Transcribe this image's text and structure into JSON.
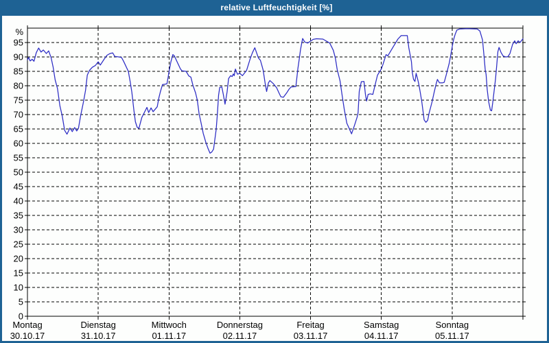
{
  "window": {
    "title": "relative Luftfeuchtigkeit [%]"
  },
  "colors": {
    "titlebar_bg": "#1e6294",
    "title_text": "#ffffff",
    "border": "#1e6294",
    "content_bg": "#fdfefd",
    "plot_bg": "#fdfefd",
    "line": "#2b2bc4",
    "grid": "#000000",
    "axis": "#000000",
    "text": "#000000"
  },
  "chart_data": {
    "type": "line",
    "title": "relative Luftfeuchtigkeit [%]",
    "xlabel": "",
    "ylabel": "%",
    "ylim": [
      0,
      100
    ],
    "y_ticks": [
      0,
      5,
      10,
      15,
      20,
      25,
      30,
      35,
      40,
      45,
      50,
      55,
      60,
      65,
      70,
      75,
      80,
      85,
      90,
      95
    ],
    "grid": true,
    "legend": "none",
    "x_unit": "hours",
    "x_range_hours": [
      0,
      168
    ],
    "x_days": [
      {
        "day": "Montag",
        "date": "30.10.17"
      },
      {
        "day": "Dienstag",
        "date": "31.10.17"
      },
      {
        "day": "Mittwoch",
        "date": "01.11.17"
      },
      {
        "day": "Donnerstag",
        "date": "02.11.17"
      },
      {
        "day": "Freitag",
        "date": "03.11.17"
      },
      {
        "day": "Samstag",
        "date": "04.11.17"
      },
      {
        "day": "Sonntag",
        "date": "05.11.17"
      }
    ],
    "series": [
      {
        "name": "relative Luftfeuchtigkeit",
        "unit": "%",
        "points": [
          [
            0,
            89
          ],
          [
            0.4,
            89.8
          ],
          [
            0.9,
            88.6
          ],
          [
            1.6,
            89.2
          ],
          [
            2.2,
            88.5
          ],
          [
            3,
            91.5
          ],
          [
            3.8,
            93.1
          ],
          [
            4.6,
            91.7
          ],
          [
            5.4,
            92.4
          ],
          [
            6.4,
            91.2
          ],
          [
            7.2,
            92.1
          ],
          [
            8,
            89.8
          ],
          [
            8.7,
            86.5
          ],
          [
            9.4,
            82
          ],
          [
            10.2,
            79
          ],
          [
            11,
            73
          ],
          [
            11.8,
            69.5
          ],
          [
            12.6,
            64.5
          ],
          [
            13.4,
            63.2
          ],
          [
            14.4,
            65.3
          ],
          [
            15.2,
            64.1
          ],
          [
            16,
            65.5
          ],
          [
            16.7,
            64.3
          ],
          [
            17.3,
            65.2
          ],
          [
            18,
            69.5
          ],
          [
            19,
            74.5
          ],
          [
            19.7,
            78.5
          ],
          [
            20.3,
            83.7
          ],
          [
            21,
            85.3
          ],
          [
            22,
            86.4
          ],
          [
            23,
            87
          ],
          [
            24,
            88.3
          ],
          [
            24.7,
            87.2
          ],
          [
            26,
            89.2
          ],
          [
            27,
            90.6
          ],
          [
            28,
            91.2
          ],
          [
            28.9,
            91.4
          ],
          [
            29.6,
            90.2
          ],
          [
            31,
            90
          ],
          [
            31.9,
            89.8
          ],
          [
            32.6,
            88.5
          ],
          [
            34.2,
            85
          ],
          [
            34.9,
            81
          ],
          [
            35.4,
            77.8
          ],
          [
            36.1,
            71.5
          ],
          [
            36.6,
            67.5
          ],
          [
            37.2,
            65.6
          ],
          [
            37.8,
            65.2
          ],
          [
            38.8,
            69
          ],
          [
            40.5,
            72.5
          ],
          [
            41.1,
            70.7
          ],
          [
            41.9,
            72.3
          ],
          [
            42.6,
            71
          ],
          [
            44,
            72.7
          ],
          [
            44.6,
            76
          ],
          [
            45.1,
            78
          ],
          [
            45.8,
            80.4
          ],
          [
            46.5,
            80.5
          ],
          [
            47.3,
            80.7
          ],
          [
            48,
            84.8
          ],
          [
            48.6,
            88.2
          ],
          [
            49.3,
            90.8
          ],
          [
            49.8,
            90.4
          ],
          [
            50.8,
            88.2
          ],
          [
            51.9,
            85.8
          ],
          [
            52.4,
            85.2
          ],
          [
            53.8,
            85
          ],
          [
            54.7,
            83.4
          ],
          [
            55.4,
            83
          ],
          [
            56.1,
            80.2
          ],
          [
            57,
            77.5
          ],
          [
            57.6,
            75
          ],
          [
            58.2,
            70.3
          ],
          [
            58.9,
            67
          ],
          [
            59.6,
            63.5
          ],
          [
            60.5,
            60.3
          ],
          [
            61.2,
            58.3
          ],
          [
            61.9,
            56.6
          ],
          [
            62.5,
            57
          ],
          [
            63.1,
            58
          ],
          [
            64,
            64.8
          ],
          [
            64.4,
            70.3
          ],
          [
            64.8,
            76.7
          ],
          [
            65.2,
            79.4
          ],
          [
            65.9,
            79.6
          ],
          [
            66.4,
            77
          ],
          [
            67,
            73.6
          ],
          [
            67.7,
            77.8
          ],
          [
            68.2,
            82.5
          ],
          [
            68.9,
            83.5
          ],
          [
            69.4,
            83.2
          ],
          [
            69.8,
            84.1
          ],
          [
            70.1,
            83.5
          ],
          [
            70.5,
            85.8
          ],
          [
            71.2,
            84
          ],
          [
            72,
            84.3
          ],
          [
            72.9,
            83.5
          ],
          [
            74.3,
            85.3
          ],
          [
            75.5,
            89.3
          ],
          [
            76.3,
            91.5
          ],
          [
            77.1,
            93.2
          ],
          [
            78.3,
            89.7
          ],
          [
            79,
            88.8
          ],
          [
            79.9,
            85.5
          ],
          [
            80.6,
            80.8
          ],
          [
            81.1,
            78
          ],
          [
            81.7,
            81
          ],
          [
            82.2,
            81.8
          ],
          [
            83.4,
            80.7
          ],
          [
            84.5,
            79.3
          ],
          [
            85.2,
            77.7
          ],
          [
            85.9,
            76.2
          ],
          [
            86.8,
            76
          ],
          [
            88,
            77.7
          ],
          [
            88.7,
            78.8
          ],
          [
            89.4,
            79.6
          ],
          [
            91,
            79.7
          ],
          [
            91.7,
            86
          ],
          [
            92.2,
            89.5
          ],
          [
            92.6,
            92.7
          ],
          [
            93.3,
            96.4
          ],
          [
            94,
            95.2
          ],
          [
            95,
            94.8
          ],
          [
            96,
            95.5
          ],
          [
            96.9,
            96.1
          ],
          [
            98,
            96.3
          ],
          [
            100.2,
            96.2
          ],
          [
            101.5,
            95.4
          ],
          [
            102.5,
            94.8
          ],
          [
            103.7,
            92.3
          ],
          [
            104.4,
            89.6
          ],
          [
            105,
            85.7
          ],
          [
            106,
            81.7
          ],
          [
            106.7,
            76.6
          ],
          [
            107.4,
            71.9
          ],
          [
            108.3,
            67
          ],
          [
            109,
            65.4
          ],
          [
            109.9,
            63.3
          ],
          [
            110.8,
            66
          ],
          [
            111.8,
            69.2
          ],
          [
            112.1,
            70.7
          ],
          [
            112.5,
            78
          ],
          [
            113.2,
            81.4
          ],
          [
            114.1,
            81.5
          ],
          [
            114.6,
            77
          ],
          [
            115,
            74.7
          ],
          [
            115.5,
            77
          ],
          [
            116.2,
            77.2
          ],
          [
            117.1,
            77
          ],
          [
            117.8,
            80
          ],
          [
            118.7,
            83.7
          ],
          [
            120,
            85.8
          ],
          [
            120.5,
            87.3
          ],
          [
            121.6,
            90.8
          ],
          [
            122.2,
            90.4
          ],
          [
            123.9,
            93.3
          ],
          [
            125.6,
            96.2
          ],
          [
            126.7,
            97.4
          ],
          [
            128.8,
            97.4
          ],
          [
            129.3,
            93.2
          ],
          [
            130.2,
            88.4
          ],
          [
            130.5,
            84.6
          ],
          [
            130.9,
            82.2
          ],
          [
            131.4,
            81.5
          ],
          [
            131.8,
            84.3
          ],
          [
            132.5,
            81.5
          ],
          [
            132.8,
            80
          ],
          [
            133.2,
            77.7
          ],
          [
            133.7,
            74.5
          ],
          [
            134.1,
            71.4
          ],
          [
            134.5,
            68.2
          ],
          [
            135.1,
            67.3
          ],
          [
            135.7,
            68
          ],
          [
            136.2,
            70.5
          ],
          [
            137.2,
            74.4
          ],
          [
            137.9,
            77.7
          ],
          [
            138.6,
            80.7
          ],
          [
            139,
            82.2
          ],
          [
            139.7,
            81
          ],
          [
            140.7,
            81
          ],
          [
            141.3,
            81.2
          ],
          [
            142,
            83.8
          ],
          [
            143,
            87.8
          ],
          [
            143.6,
            91
          ],
          [
            144,
            93.5
          ],
          [
            144.5,
            96
          ],
          [
            145,
            97.8
          ],
          [
            145.6,
            99.3
          ],
          [
            146.5,
            99.7
          ],
          [
            149,
            99.8
          ],
          [
            152.5,
            99.7
          ],
          [
            153.4,
            99
          ],
          [
            154.3,
            95.9
          ],
          [
            154.8,
            90.4
          ],
          [
            155.2,
            85.7
          ],
          [
            155.5,
            84
          ],
          [
            155.9,
            78.6
          ],
          [
            156.4,
            74.4
          ],
          [
            157,
            71.5
          ],
          [
            157.4,
            71.3
          ],
          [
            157.8,
            74.5
          ],
          [
            158.7,
            82.2
          ],
          [
            159.1,
            87
          ],
          [
            159.5,
            91.8
          ],
          [
            159.9,
            93.3
          ],
          [
            160.6,
            91.5
          ],
          [
            161.3,
            90.3
          ],
          [
            162.2,
            90
          ],
          [
            162.9,
            90.1
          ],
          [
            163.6,
            91.2
          ],
          [
            164.5,
            94.4
          ],
          [
            165.2,
            95.6
          ],
          [
            165.7,
            94.6
          ],
          [
            166.4,
            95.6
          ],
          [
            167,
            95
          ],
          [
            168,
            96.3
          ]
        ]
      }
    ]
  }
}
